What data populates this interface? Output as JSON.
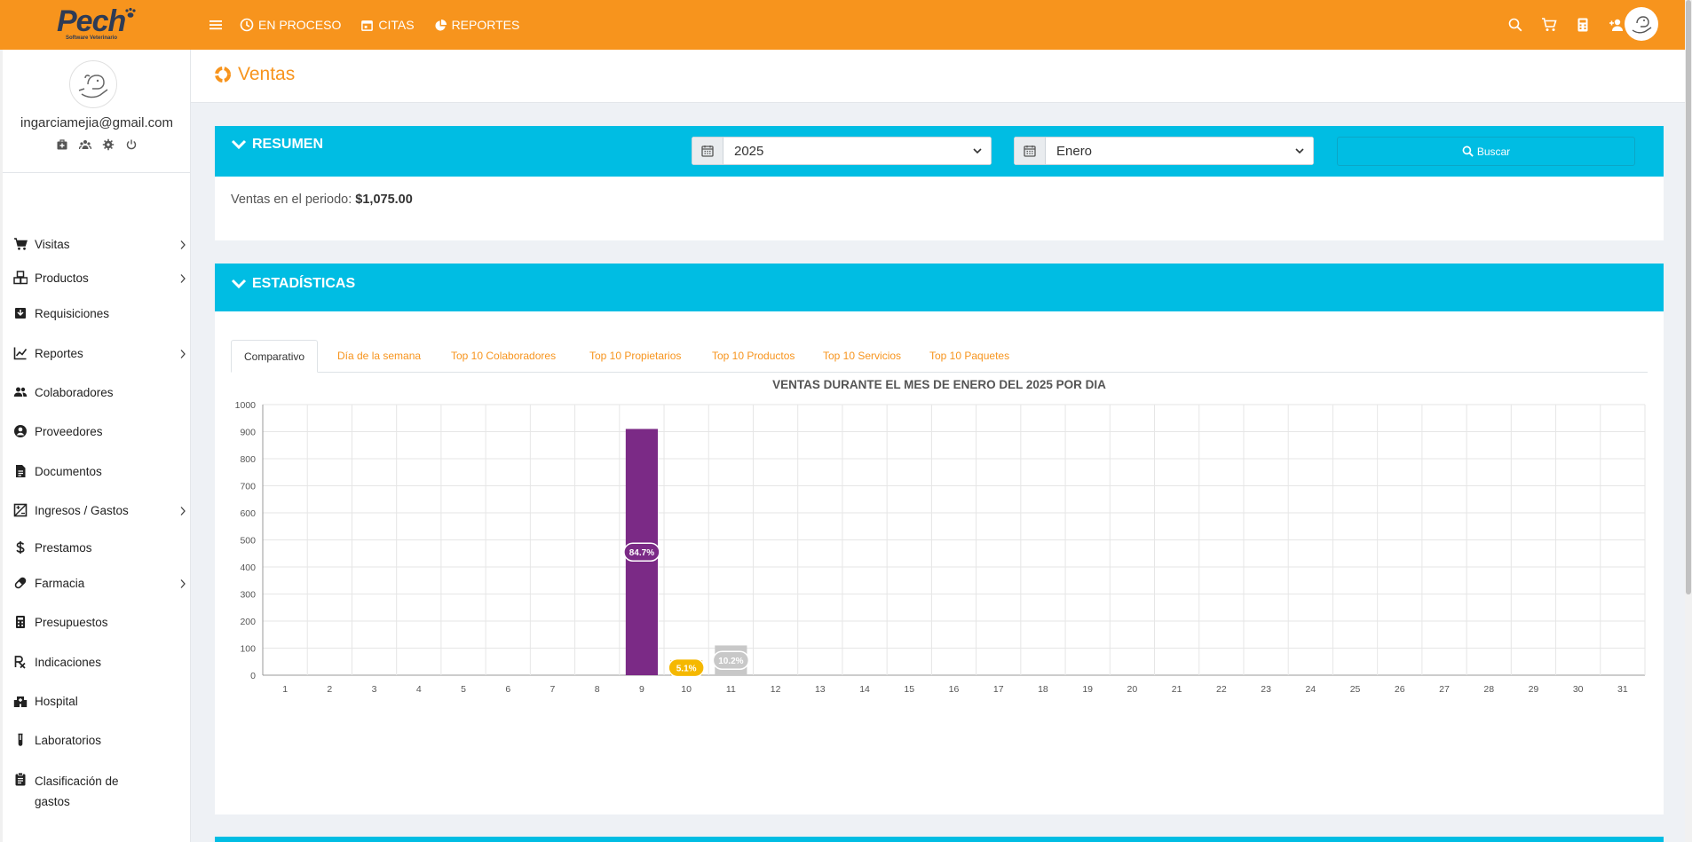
{
  "brand": {
    "name": "Pech",
    "tagline": "Software Veterinario"
  },
  "topnav": {
    "links": [
      {
        "label": "EN PROCESO",
        "icon": "clock-icon"
      },
      {
        "label": "CITAS",
        "icon": "calendar-icon"
      },
      {
        "label": "REPORTES",
        "icon": "pie-chart-icon"
      }
    ],
    "right_icons": [
      "search-icon",
      "cart-icon",
      "calculator-icon",
      "add-user-icon"
    ]
  },
  "user": {
    "email": "ingarciamejia@gmail.com"
  },
  "sidebar": {
    "items": [
      {
        "label": "Visitas",
        "icon": "cart-icon",
        "has_submenu": true
      },
      {
        "label": "Productos",
        "icon": "boxes-icon",
        "has_submenu": true
      },
      {
        "label": "Requisiciones",
        "icon": "inbox-icon",
        "has_submenu": false
      },
      {
        "label": "Reportes",
        "icon": "line-chart-icon",
        "has_submenu": true
      },
      {
        "label": "Colaboradores",
        "icon": "group-icon",
        "has_submenu": false
      },
      {
        "label": "Proveedores",
        "icon": "user-circle-icon",
        "has_submenu": false
      },
      {
        "label": "Documentos",
        "icon": "document-icon",
        "has_submenu": false
      },
      {
        "label": "Ingresos / Gastos",
        "icon": "income-expense-icon",
        "has_submenu": true
      },
      {
        "label": "Prestamos",
        "icon": "dollar-icon",
        "has_submenu": false
      },
      {
        "label": "Farmacia",
        "icon": "pill-icon",
        "has_submenu": true
      },
      {
        "label": "Presupuestos",
        "icon": "calculator-icon",
        "has_submenu": false
      },
      {
        "label": "Indicaciones",
        "icon": "prescription-icon",
        "has_submenu": false
      },
      {
        "label": "Hospital",
        "icon": "hospital-icon",
        "has_submenu": false
      },
      {
        "label": "Laboratorios",
        "icon": "test-tube-icon",
        "has_submenu": false
      },
      {
        "label": "Clasificación de gastos",
        "icon": "clipboard-icon",
        "has_submenu": false
      }
    ]
  },
  "page": {
    "title": "Ventas"
  },
  "summary": {
    "title": "RESUMEN",
    "year_value": "2025",
    "month_value": "Enero",
    "search_label": "Buscar",
    "sales_label": "Ventas en el periodo:",
    "sales_value": "$1,075.00"
  },
  "stats": {
    "title": "ESTADÍSTICAS",
    "tabs": [
      "Comparativo",
      "Día de la semana",
      "Top 10 Colaboradores",
      "Top 10 Propietarios",
      "Top 10 Productos",
      "Top 10 Servicios",
      "Top 10 Paquetes"
    ],
    "active_tab": 0
  },
  "colors": {
    "brand_orange": "#f7941d",
    "header_cyan": "#00bde3",
    "bar_purple": "#7b2a86",
    "bar_yellow": "#f5b800",
    "bar_gray": "#c8c8c8"
  },
  "chart_data": {
    "type": "bar",
    "title": "VENTAS DURANTE EL MES DE ENERO DEL 2025 POR DIA",
    "categories": [
      "1",
      "2",
      "3",
      "4",
      "5",
      "6",
      "7",
      "8",
      "9",
      "10",
      "11",
      "12",
      "13",
      "14",
      "15",
      "16",
      "17",
      "18",
      "19",
      "20",
      "21",
      "22",
      "23",
      "24",
      "25",
      "26",
      "27",
      "28",
      "29",
      "30",
      "31"
    ],
    "values": [
      0,
      0,
      0,
      0,
      0,
      0,
      0,
      0,
      910,
      55,
      110,
      0,
      0,
      0,
      0,
      0,
      0,
      0,
      0,
      0,
      0,
      0,
      0,
      0,
      0,
      0,
      0,
      0,
      0,
      0,
      0
    ],
    "data_labels": {
      "9": "84.7%",
      "10": "5.1%",
      "11": "10.2%"
    },
    "bar_colors": {
      "9": "#7b2a86",
      "10": "#f5b800",
      "11": "#c8c8c8"
    },
    "ylim": [
      0,
      1000
    ],
    "yticks": [
      0,
      100,
      200,
      300,
      400,
      500,
      600,
      700,
      800,
      900,
      1000
    ],
    "grid": true,
    "xlabel": "",
    "ylabel": ""
  }
}
